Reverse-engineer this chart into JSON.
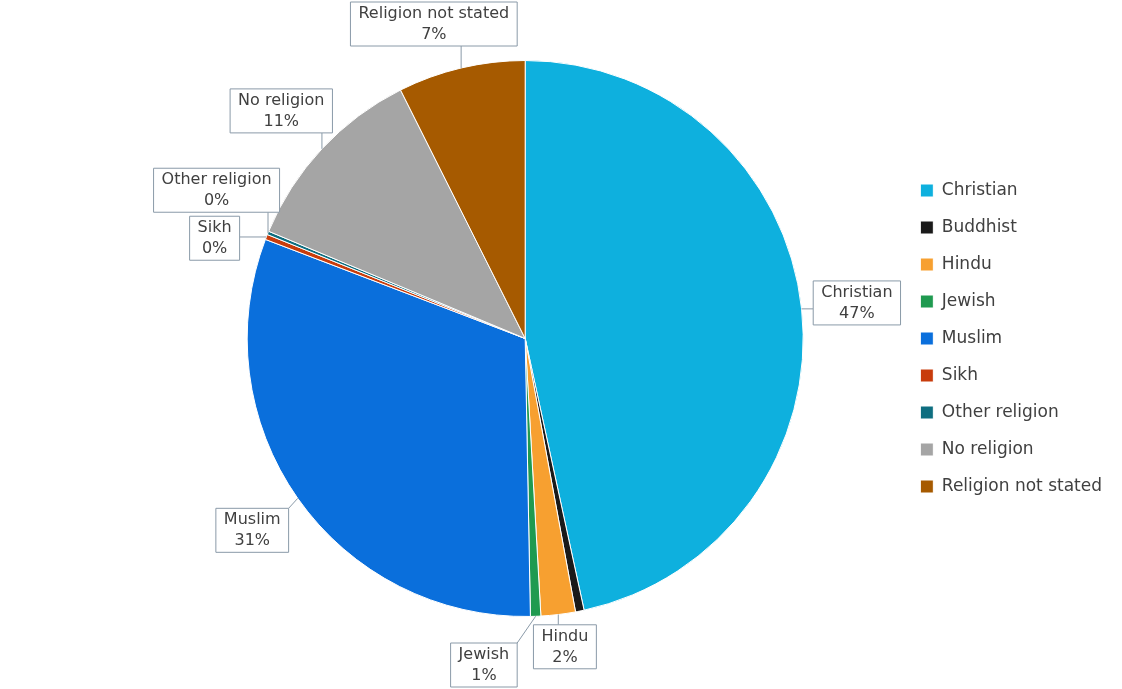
{
  "chart_data": {
    "type": "pie",
    "categories": [
      "Christian",
      "Buddhist",
      "Hindu",
      "Jewish",
      "Muslim",
      "Sikh",
      "Other religion",
      "No religion",
      "Religion not stated"
    ],
    "values": [
      46.6,
      0.5,
      2.0,
      0.6,
      31.1,
      0.3,
      0.2,
      11.3,
      7.4
    ],
    "colors": [
      "#0eb0de",
      "#1a1a1a",
      "#f7a030",
      "#1f9a50",
      "#0a6fdc",
      "#c83c0c",
      "#0e6e80",
      "#a5a5a5",
      "#a65a00"
    ],
    "value_labels": [
      "47%",
      null,
      "2%",
      "1%",
      "31%",
      "0%",
      "0%",
      "11%",
      "7%"
    ],
    "legend": "right"
  }
}
